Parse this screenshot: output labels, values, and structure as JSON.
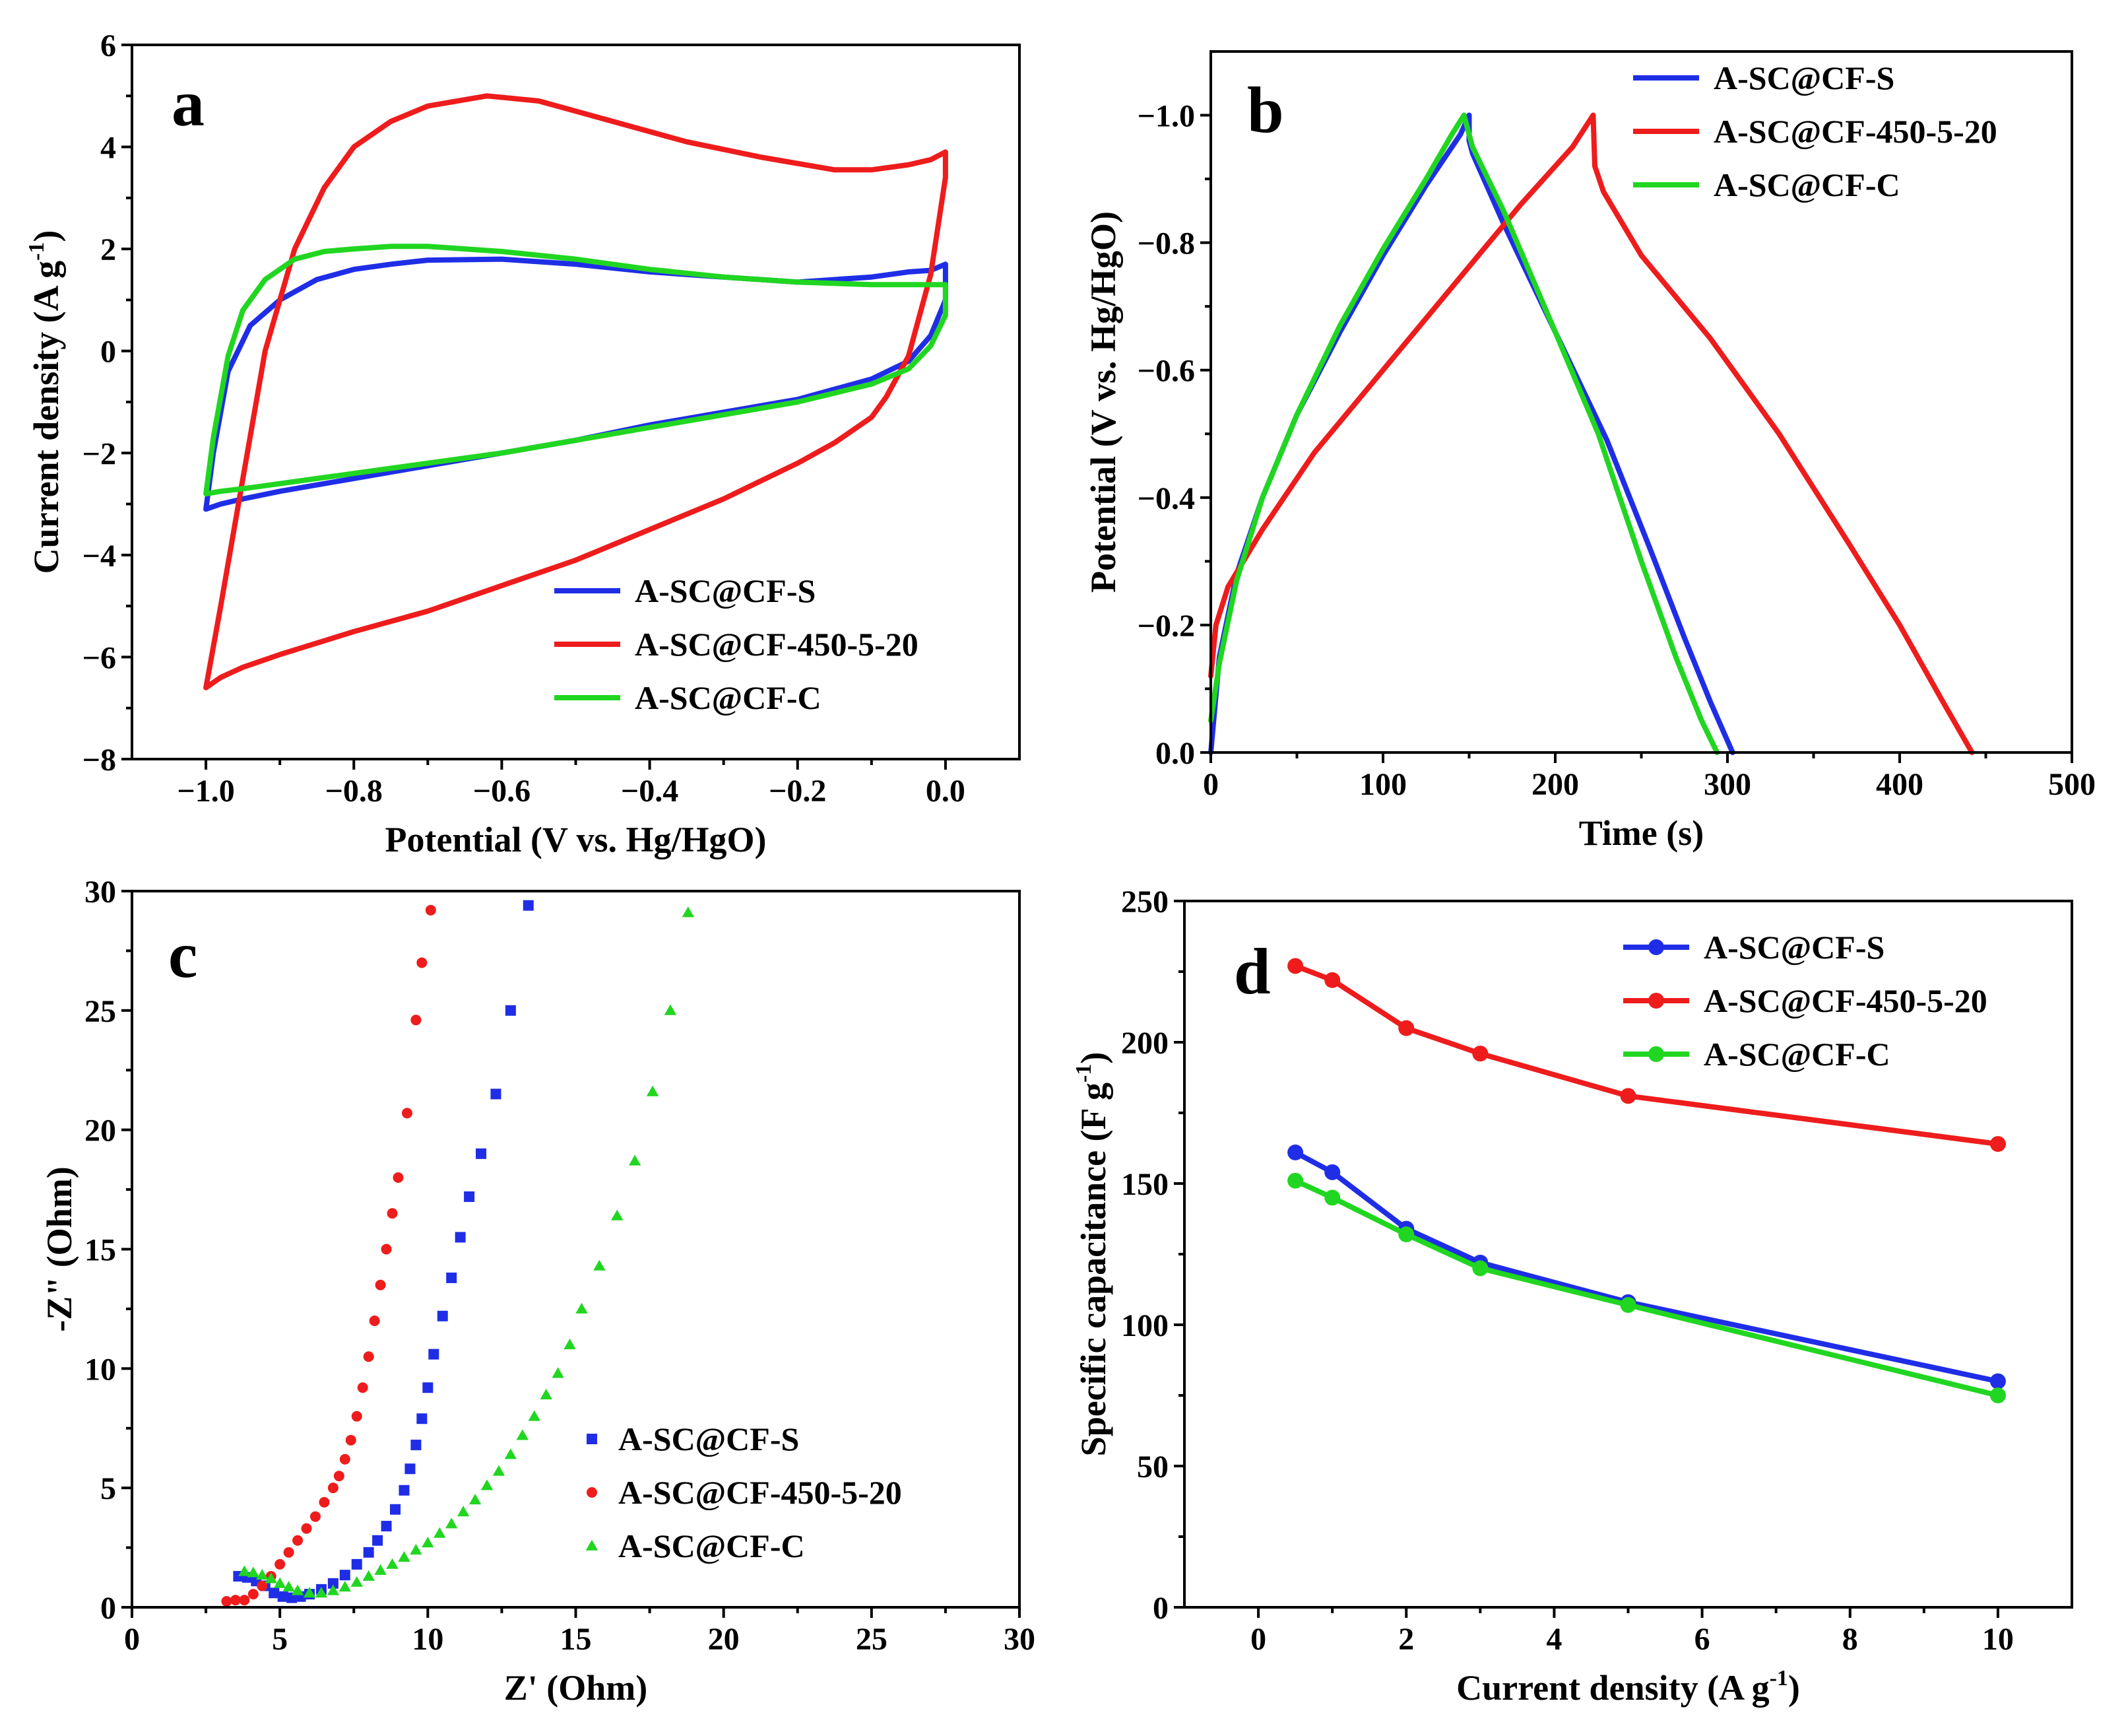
{
  "colors": {
    "s": "#1f2ee6",
    "r": "#ee1c1c",
    "c": "#21d621"
  },
  "chart_data": [
    {
      "id": "a",
      "type": "line",
      "panel_letter": "a",
      "xlabel": "Potential (V vs. Hg/HgO)",
      "ylabel": "Current density (A g",
      "ylabel_sup": "-1",
      "ylabel_close": ")",
      "xlim": [
        -1.1,
        0.1
      ],
      "ylim": [
        -8,
        6
      ],
      "xticks": [
        -1.0,
        -0.8,
        -0.6,
        -0.4,
        -0.2,
        0.0
      ],
      "xtick_labels": [
        "−1.0",
        "−0.8",
        "−0.6",
        "−0.4",
        "−0.2",
        "0.0"
      ],
      "yticks": [
        -8,
        -6,
        -4,
        -2,
        0,
        2,
        4,
        6
      ],
      "ytick_labels": [
        "−8",
        "−6",
        "−4",
        "−2",
        "0",
        "2",
        "4",
        "6"
      ],
      "legend_position": "bottom-right",
      "series": [
        {
          "name": "A-SC@CF-S",
          "color_key": "s",
          "marker": "none",
          "x": [
            -1.0,
            -0.99,
            -0.97,
            -0.94,
            -0.9,
            -0.85,
            -0.8,
            -0.75,
            -0.7,
            -0.6,
            -0.5,
            -0.4,
            -0.3,
            -0.2,
            -0.1,
            -0.05,
            -0.02,
            0.0,
            0.0,
            -0.02,
            -0.05,
            -0.1,
            -0.2,
            -0.3,
            -0.4,
            -0.5,
            -0.6,
            -0.7,
            -0.8,
            -0.9,
            -0.95,
            -0.98,
            -1.0,
            -1.0
          ],
          "y": [
            -3.1,
            -2.0,
            -0.4,
            0.5,
            1.0,
            1.4,
            1.6,
            1.7,
            1.78,
            1.8,
            1.7,
            1.55,
            1.45,
            1.35,
            1.45,
            1.55,
            1.58,
            1.7,
            1.0,
            0.3,
            -0.2,
            -0.55,
            -0.95,
            -1.2,
            -1.45,
            -1.75,
            -2.0,
            -2.25,
            -2.5,
            -2.75,
            -2.9,
            -3.0,
            -3.1,
            -3.1
          ]
        },
        {
          "name": "A-SC@CF-450-5-20",
          "color_key": "r",
          "marker": "none",
          "x": [
            -1.0,
            -0.98,
            -0.95,
            -0.92,
            -0.88,
            -0.84,
            -0.8,
            -0.75,
            -0.7,
            -0.62,
            -0.55,
            -0.45,
            -0.35,
            -0.25,
            -0.15,
            -0.1,
            -0.05,
            -0.02,
            0.0,
            0.0,
            -0.02,
            -0.05,
            -0.08,
            -0.1,
            -0.15,
            -0.2,
            -0.3,
            -0.4,
            -0.5,
            -0.6,
            -0.7,
            -0.8,
            -0.9,
            -0.95,
            -0.98,
            -1.0
          ],
          "y": [
            -6.6,
            -5.0,
            -2.5,
            0.0,
            2.0,
            3.2,
            4.0,
            4.5,
            4.8,
            5.0,
            4.9,
            4.5,
            4.1,
            3.8,
            3.55,
            3.55,
            3.65,
            3.75,
            3.9,
            3.4,
            1.5,
            -0.1,
            -0.9,
            -1.3,
            -1.8,
            -2.2,
            -2.9,
            -3.5,
            -4.1,
            -4.6,
            -5.1,
            -5.5,
            -5.95,
            -6.2,
            -6.4,
            -6.6
          ]
        },
        {
          "name": "A-SC@CF-C",
          "color_key": "c",
          "marker": "none",
          "x": [
            -1.0,
            -0.99,
            -0.97,
            -0.95,
            -0.92,
            -0.88,
            -0.84,
            -0.8,
            -0.75,
            -0.7,
            -0.6,
            -0.5,
            -0.4,
            -0.3,
            -0.2,
            -0.1,
            -0.05,
            0.0,
            0.0,
            -0.02,
            -0.05,
            -0.1,
            -0.2,
            -0.3,
            -0.4,
            -0.5,
            -0.6,
            -0.7,
            -0.8,
            -0.9,
            -0.95,
            -0.98,
            -1.0
          ],
          "y": [
            -2.8,
            -1.7,
            -0.1,
            0.8,
            1.4,
            1.8,
            1.95,
            2.0,
            2.05,
            2.05,
            1.95,
            1.8,
            1.6,
            1.45,
            1.35,
            1.3,
            1.3,
            1.3,
            0.7,
            0.1,
            -0.35,
            -0.65,
            -1.0,
            -1.25,
            -1.5,
            -1.75,
            -2.0,
            -2.2,
            -2.4,
            -2.6,
            -2.7,
            -2.75,
            -2.8
          ]
        }
      ]
    },
    {
      "id": "b",
      "type": "line",
      "panel_letter": "b",
      "xlabel": "Time (s)",
      "ylabel": "Potential (V vs. Hg/HgO)",
      "xlim": [
        0,
        500
      ],
      "ylim": [
        0.0,
        -1.1
      ],
      "xticks": [
        0,
        100,
        200,
        300,
        400,
        500
      ],
      "xtick_labels": [
        "0",
        "100",
        "200",
        "300",
        "400",
        "500"
      ],
      "yticks": [
        0.0,
        -0.2,
        -0.4,
        -0.6,
        -0.8,
        -1.0
      ],
      "ytick_labels": [
        "0.0",
        "−0.2",
        "−0.4",
        "−0.6",
        "−0.8",
        "−1.0"
      ],
      "legend_position": "top-right",
      "series": [
        {
          "name": "A-SC@CF-S",
          "color_key": "s",
          "marker": "none",
          "x": [
            0,
            5,
            15,
            30,
            50,
            75,
            100,
            125,
            145,
            150,
            150,
            152,
            170,
            200,
            230,
            255,
            275,
            290,
            303
          ],
          "y": [
            0.0,
            -0.15,
            -0.28,
            -0.4,
            -0.53,
            -0.66,
            -0.78,
            -0.89,
            -0.97,
            -1.0,
            -0.96,
            -0.94,
            -0.83,
            -0.66,
            -0.49,
            -0.32,
            -0.18,
            -0.08,
            0.0
          ]
        },
        {
          "name": "A-SC@CF-450-5-20",
          "color_key": "r",
          "marker": "none",
          "x": [
            0,
            3,
            10,
            30,
            60,
            100,
            140,
            180,
            210,
            222,
            223,
            228,
            250,
            290,
            330,
            370,
            400,
            425,
            442
          ],
          "y": [
            -0.12,
            -0.2,
            -0.26,
            -0.35,
            -0.47,
            -0.6,
            -0.73,
            -0.86,
            -0.95,
            -1.0,
            -0.92,
            -0.88,
            -0.78,
            -0.65,
            -0.5,
            -0.33,
            -0.2,
            -0.08,
            0.0
          ]
        },
        {
          "name": "A-SC@CF-C",
          "color_key": "c",
          "marker": "none",
          "x": [
            0,
            5,
            15,
            30,
            50,
            75,
            100,
            125,
            140,
            147,
            152,
            170,
            200,
            225,
            250,
            270,
            285,
            294
          ],
          "y": [
            -0.05,
            -0.14,
            -0.27,
            -0.4,
            -0.53,
            -0.67,
            -0.79,
            -0.9,
            -0.97,
            -1.0,
            -0.95,
            -0.85,
            -0.66,
            -0.5,
            -0.3,
            -0.15,
            -0.05,
            0.0
          ]
        }
      ]
    },
    {
      "id": "c",
      "type": "scatter",
      "panel_letter": "c",
      "xlabel": "Z' (Ohm)",
      "ylabel": "-Z\" (Ohm)",
      "xlim": [
        0,
        30
      ],
      "ylim": [
        0,
        30
      ],
      "xticks": [
        0,
        5,
        10,
        15,
        20,
        25,
        30
      ],
      "xtick_labels": [
        "0",
        "5",
        "10",
        "15",
        "20",
        "25",
        "30"
      ],
      "yticks": [
        0,
        5,
        10,
        15,
        20,
        25,
        30
      ],
      "ytick_labels": [
        "0",
        "5",
        "10",
        "15",
        "20",
        "25",
        "30"
      ],
      "legend_position": "bottom-right",
      "series": [
        {
          "name": "A-SC@CF-S",
          "color_key": "s",
          "marker": "square",
          "x": [
            3.6,
            3.9,
            4.2,
            4.5,
            4.8,
            5.1,
            5.4,
            5.7,
            6.0,
            6.4,
            6.8,
            7.2,
            7.6,
            8.0,
            8.3,
            8.6,
            8.9,
            9.2,
            9.4,
            9.6,
            9.8,
            10.0,
            10.2,
            10.5,
            10.8,
            11.1,
            11.4,
            11.8,
            12.3,
            12.8,
            13.4
          ],
          "y": [
            1.3,
            1.25,
            1.1,
            0.9,
            0.6,
            0.45,
            0.4,
            0.45,
            0.55,
            0.75,
            1.0,
            1.35,
            1.8,
            2.3,
            2.8,
            3.4,
            4.1,
            4.9,
            5.8,
            6.8,
            7.9,
            9.2,
            10.6,
            12.2,
            13.8,
            15.5,
            17.2,
            19.0,
            21.5,
            25.0,
            29.4
          ]
        },
        {
          "name": "A-SC@CF-450-5-20",
          "color_key": "r",
          "marker": "circle",
          "x": [
            3.2,
            3.5,
            3.8,
            4.1,
            4.4,
            4.7,
            5.0,
            5.3,
            5.6,
            5.9,
            6.2,
            6.5,
            6.8,
            7.0,
            7.2,
            7.4,
            7.6,
            7.8,
            8.0,
            8.2,
            8.4,
            8.6,
            8.8,
            9.0,
            9.3,
            9.6,
            9.8,
            10.1
          ],
          "y": [
            0.25,
            0.3,
            0.3,
            0.55,
            0.9,
            1.3,
            1.8,
            2.3,
            2.8,
            3.3,
            3.8,
            4.4,
            5.0,
            5.5,
            6.2,
            7.0,
            8.0,
            9.2,
            10.5,
            12.0,
            13.5,
            15.0,
            16.5,
            18.0,
            20.7,
            24.6,
            27.0,
            29.2
          ]
        },
        {
          "name": "A-SC@CF-C",
          "color_key": "c",
          "marker": "triangle",
          "x": [
            3.8,
            4.1,
            4.4,
            4.7,
            5.0,
            5.3,
            5.6,
            6.0,
            6.4,
            6.8,
            7.2,
            7.6,
            8.0,
            8.4,
            8.8,
            9.2,
            9.6,
            10.0,
            10.4,
            10.8,
            11.2,
            11.6,
            12.0,
            12.4,
            12.8,
            13.2,
            13.6,
            14.0,
            14.4,
            14.8,
            15.2,
            15.8,
            16.4,
            17.0,
            17.6,
            18.2,
            18.8
          ],
          "y": [
            1.5,
            1.45,
            1.35,
            1.2,
            1.0,
            0.85,
            0.7,
            0.6,
            0.6,
            0.7,
            0.85,
            1.05,
            1.3,
            1.55,
            1.8,
            2.1,
            2.4,
            2.7,
            3.1,
            3.5,
            4.0,
            4.5,
            5.1,
            5.7,
            6.4,
            7.2,
            8.0,
            8.9,
            9.8,
            11.0,
            12.5,
            14.3,
            16.4,
            18.7,
            21.6,
            25.0,
            29.1
          ]
        }
      ]
    },
    {
      "id": "d",
      "type": "line",
      "panel_letter": "d",
      "xlabel": "Current density (A g",
      "xlabel_sup": "-1",
      "xlabel_close": ")",
      "ylabel": "Specific capacitance (F g",
      "ylabel_sup": "-1",
      "ylabel_close": ")",
      "xlim": [
        -1,
        11
      ],
      "ylim": [
        0,
        250
      ],
      "xticks": [
        0,
        2,
        4,
        6,
        8,
        10
      ],
      "xtick_labels": [
        "0",
        "2",
        "4",
        "6",
        "8",
        "10"
      ],
      "yticks": [
        0,
        50,
        100,
        150,
        200,
        250
      ],
      "ytick_labels": [
        "0",
        "50",
        "100",
        "150",
        "200",
        "250"
      ],
      "legend_position": "top-right",
      "series": [
        {
          "name": "A-SC@CF-S",
          "color_key": "s",
          "marker": "circle",
          "x": [
            0.5,
            1,
            2,
            3,
            5,
            10
          ],
          "y": [
            161,
            154,
            134,
            122,
            108,
            80
          ]
        },
        {
          "name": "A-SC@CF-450-5-20",
          "color_key": "r",
          "marker": "circle",
          "x": [
            0.5,
            1,
            2,
            3,
            5,
            10
          ],
          "y": [
            227,
            222,
            205,
            196,
            181,
            164
          ]
        },
        {
          "name": "A-SC@CF-C",
          "color_key": "c",
          "marker": "circle",
          "x": [
            0.5,
            1,
            2,
            3,
            5,
            10
          ],
          "y": [
            151,
            145,
            132,
            120,
            107,
            75
          ]
        }
      ]
    }
  ]
}
